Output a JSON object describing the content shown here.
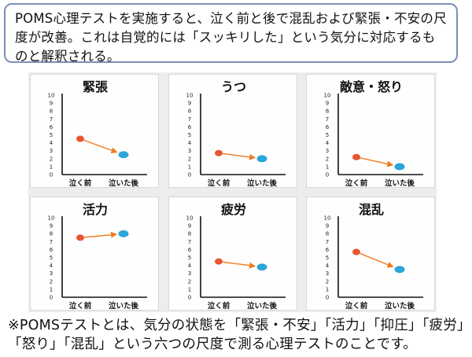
{
  "intro_text": "POMS心理テストを実施すると、泣く前と後で混乱および緊張・不安の尺度が改善。これは自覚的には「スッキリした」という気分に対応するものと解釈される。",
  "footnote": "※POMSテストとは、気分の状態を「緊張・不安」「活力」「抑圧」「疲労」「怒り」「混乱」という六つの尺度で測る心理テストのことです。",
  "colors": {
    "before": "#e8552e",
    "after": "#2aa6d8",
    "arrow": "#f07a1e",
    "border": "#7b8fb6"
  },
  "chart_data": [
    {
      "type": "line",
      "title": "緊張",
      "categories": [
        "泣く前",
        "泣いた後"
      ],
      "values": [
        4.5,
        2.5
      ],
      "ylim": [
        0,
        10
      ],
      "yticks": [
        "0",
        "1",
        "2",
        "3",
        "4",
        "5",
        "6",
        "7",
        "8",
        "9",
        "10"
      ]
    },
    {
      "type": "line",
      "title": "うつ",
      "categories": [
        "泣く前",
        "泣いた後"
      ],
      "values": [
        2.7,
        2.0
      ],
      "ylim": [
        0,
        10
      ],
      "yticks": [
        "0",
        "1",
        "2",
        "3",
        "4",
        "5",
        "6",
        "7",
        "8",
        "9",
        "10"
      ]
    },
    {
      "type": "line",
      "title": "敵意・怒り",
      "categories": [
        "泣く前",
        "泣いた後"
      ],
      "values": [
        2.2,
        1.0
      ],
      "ylim": [
        0,
        10
      ],
      "yticks": [
        "0",
        "1",
        "2",
        "3",
        "4",
        "5",
        "6",
        "7",
        "8",
        "9",
        "10"
      ]
    },
    {
      "type": "line",
      "title": "活力",
      "categories": [
        "泣く前",
        "泣いた後"
      ],
      "values": [
        7.5,
        8.0
      ],
      "ylim": [
        0,
        10
      ],
      "yticks": [
        "0",
        "1",
        "2",
        "3",
        "4",
        "5",
        "6",
        "7",
        "8",
        "9",
        "10"
      ]
    },
    {
      "type": "line",
      "title": "疲労",
      "categories": [
        "泣く前",
        "泣いた後"
      ],
      "values": [
        4.5,
        3.8
      ],
      "ylim": [
        0,
        10
      ],
      "yticks": [
        "0",
        "1",
        "2",
        "3",
        "4",
        "5",
        "6",
        "7",
        "8",
        "9",
        "10"
      ]
    },
    {
      "type": "line",
      "title": "混乱",
      "categories": [
        "泣く前",
        "泣いた後"
      ],
      "values": [
        5.7,
        3.5
      ],
      "ylim": [
        0,
        10
      ],
      "yticks": [
        "0",
        "1",
        "2",
        "3",
        "4",
        "5",
        "6",
        "7",
        "8",
        "9",
        "10"
      ]
    }
  ]
}
